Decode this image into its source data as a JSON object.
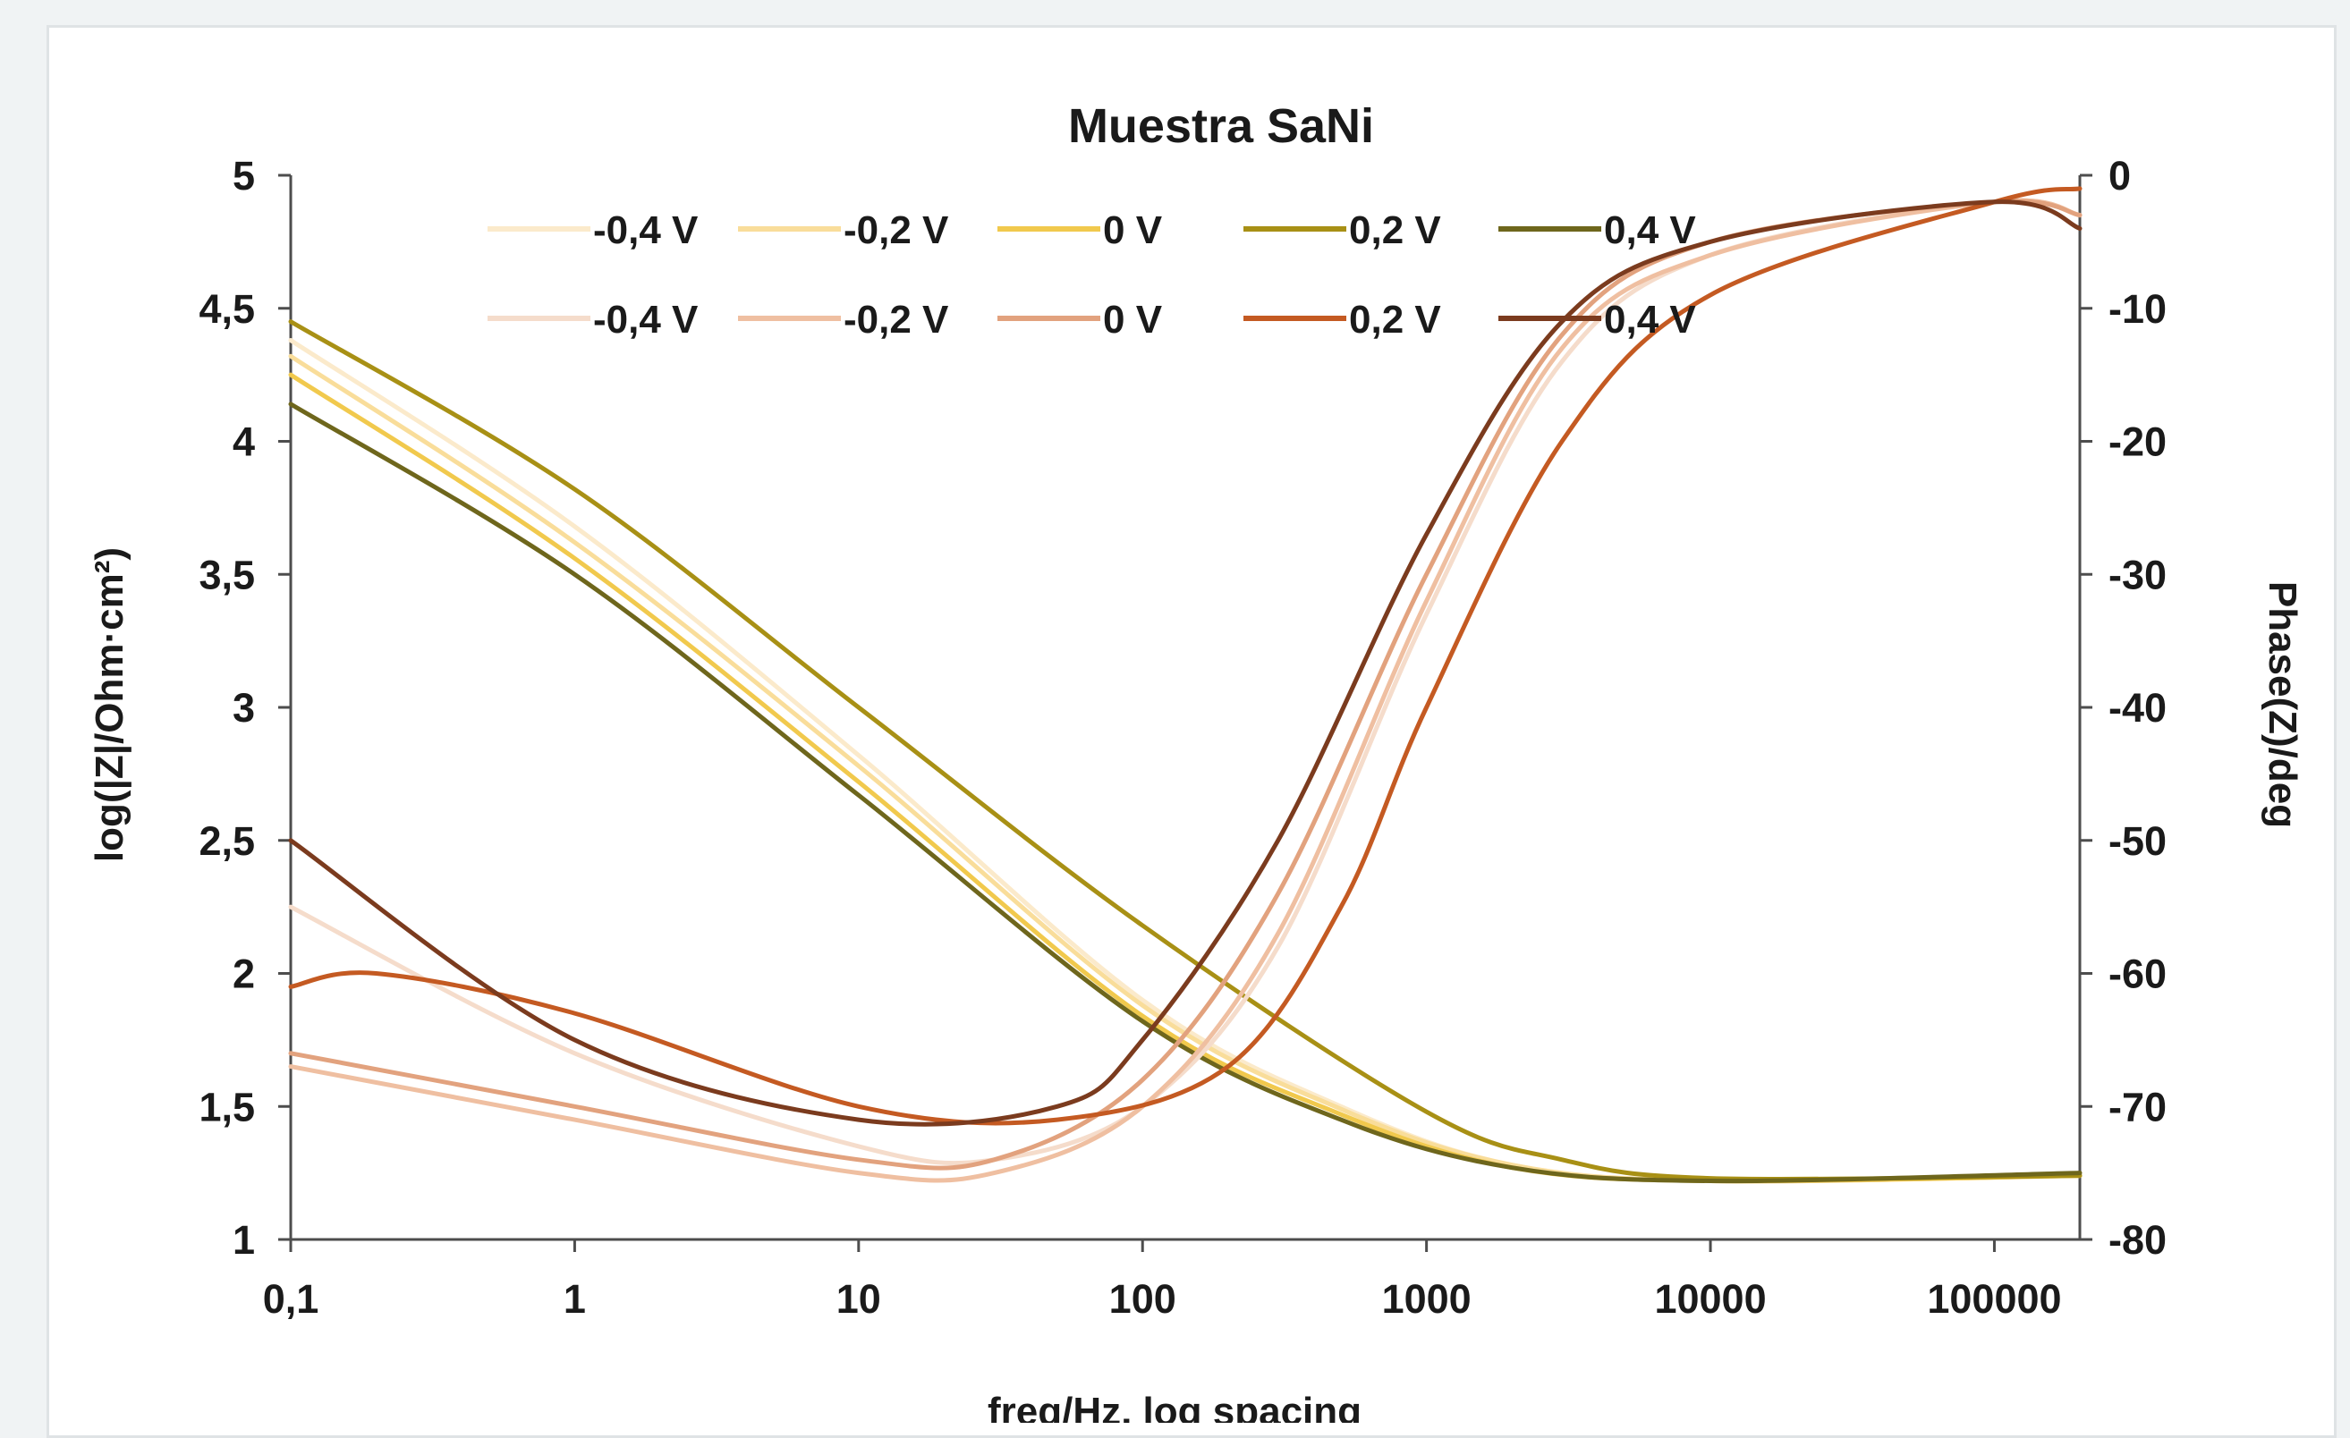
{
  "chart_data": {
    "type": "line",
    "title": "Muestra SaNi",
    "xlabel": "freq/Hz, log spacing",
    "ylabel": "log(|Z|/Ohm·cm²)",
    "y2label": "Phase(Z)/deg",
    "x_scale": "log",
    "xlim": [
      0.1,
      200000
    ],
    "ylim": [
      1,
      5
    ],
    "y2lim": [
      -80,
      0
    ],
    "x_ticks": [
      "0,1",
      "1",
      "10",
      "100",
      "1000",
      "10000",
      "100000"
    ],
    "x_tick_values": [
      0.1,
      1,
      10,
      100,
      1000,
      10000,
      100000
    ],
    "y_ticks": [
      "1",
      "1,5",
      "2",
      "2,5",
      "3",
      "3,5",
      "4",
      "4,5",
      "5"
    ],
    "y_tick_values": [
      1,
      1.5,
      2,
      2.5,
      3,
      3.5,
      4,
      4.5,
      5
    ],
    "y2_ticks": [
      "-80",
      "-70",
      "-60",
      "-50",
      "-40",
      "-30",
      "-20",
      "-10",
      "0"
    ],
    "y2_tick_values": [
      -80,
      -70,
      -60,
      -50,
      -40,
      -30,
      -20,
      -10,
      0
    ],
    "grid": false,
    "legend_position": "top",
    "legend_rows": [
      [
        {
          "label": "-0,4 V",
          "color": "#fbeacb"
        },
        {
          "label": "-0,2 V",
          "color": "#f9dd9a"
        },
        {
          "label": "0 V",
          "color": "#f1c94d"
        },
        {
          "label": "0,2 V",
          "color": "#a89015"
        },
        {
          "label": "0,4 V",
          "color": "#6e661c"
        }
      ],
      [
        {
          "label": "-0,4 V",
          "color": "#f5dccb"
        },
        {
          "label": "-0,2 V",
          "color": "#efbfa1"
        },
        {
          "label": "0 V",
          "color": "#e2a27e"
        },
        {
          "label": "0,2 V",
          "color": "#c45a22"
        },
        {
          "label": "0,4 V",
          "color": "#7b3b1e"
        }
      ]
    ],
    "series": [
      {
        "axis": "left",
        "color": "#fbeacb",
        "x": [
          0.1,
          1,
          10,
          100,
          500,
          2000,
          10000,
          200000
        ],
        "values": [
          4.38,
          3.68,
          2.82,
          1.9,
          1.5,
          1.28,
          1.22,
          1.24
        ]
      },
      {
        "axis": "left",
        "color": "#f9dd9a",
        "x": [
          0.1,
          1,
          10,
          100,
          500,
          2000,
          10000,
          200000
        ],
        "values": [
          4.32,
          3.62,
          2.78,
          1.88,
          1.49,
          1.28,
          1.22,
          1.24
        ]
      },
      {
        "axis": "left",
        "color": "#f1c94d",
        "x": [
          0.1,
          1,
          10,
          100,
          500,
          2000,
          10000,
          200000
        ],
        "values": [
          4.25,
          3.56,
          2.72,
          1.84,
          1.47,
          1.27,
          1.22,
          1.24
        ]
      },
      {
        "axis": "left",
        "color": "#a89015",
        "x": [
          0.1,
          1,
          10,
          100,
          1000,
          3000,
          10000,
          200000
        ],
        "values": [
          4.45,
          3.82,
          3.0,
          2.18,
          1.48,
          1.3,
          1.23,
          1.24
        ]
      },
      {
        "axis": "left",
        "color": "#6e661c",
        "x": [
          0.1,
          1,
          10,
          100,
          500,
          2000,
          10000,
          200000
        ],
        "values": [
          4.14,
          3.5,
          2.67,
          1.82,
          1.45,
          1.27,
          1.22,
          1.25
        ]
      },
      {
        "axis": "right",
        "color": "#f5dccb",
        "x": [
          0.1,
          1,
          10,
          30,
          100,
          300,
          1000,
          3000,
          10000,
          100000,
          200000
        ],
        "values": [
          -55,
          -66,
          -73,
          -74,
          -70,
          -58,
          -33,
          -14,
          -6,
          -2,
          -3
        ]
      },
      {
        "axis": "right",
        "color": "#efbfa1",
        "x": [
          0.1,
          1,
          10,
          30,
          100,
          300,
          1000,
          3000,
          10000,
          100000,
          200000
        ],
        "values": [
          -67,
          -71,
          -75,
          -75,
          -70,
          -57,
          -32,
          -13,
          -6,
          -2,
          -3
        ]
      },
      {
        "axis": "right",
        "color": "#e2a27e",
        "x": [
          0.1,
          1,
          10,
          30,
          100,
          300,
          1000,
          3000,
          10000,
          100000,
          200000
        ],
        "values": [
          -66,
          -70,
          -74,
          -74,
          -68,
          -54,
          -30,
          -12,
          -5,
          -2,
          -3
        ]
      },
      {
        "axis": "right",
        "color": "#c45a22",
        "x": [
          0.1,
          0.2,
          1,
          10,
          50,
          200,
          500,
          1000,
          3000,
          10000,
          100000,
          200000
        ],
        "values": [
          -61,
          -60,
          -63,
          -70,
          -71,
          -67,
          -55,
          -40,
          -20,
          -9,
          -2,
          -1
        ]
      },
      {
        "axis": "right",
        "color": "#7b3b1e",
        "x": [
          0.1,
          1,
          10,
          50,
          100,
          300,
          1000,
          3000,
          10000,
          100000,
          200000
        ],
        "values": [
          -50,
          -65,
          -71,
          -70,
          -65,
          -50,
          -27,
          -11,
          -5,
          -2,
          -4
        ]
      }
    ]
  }
}
